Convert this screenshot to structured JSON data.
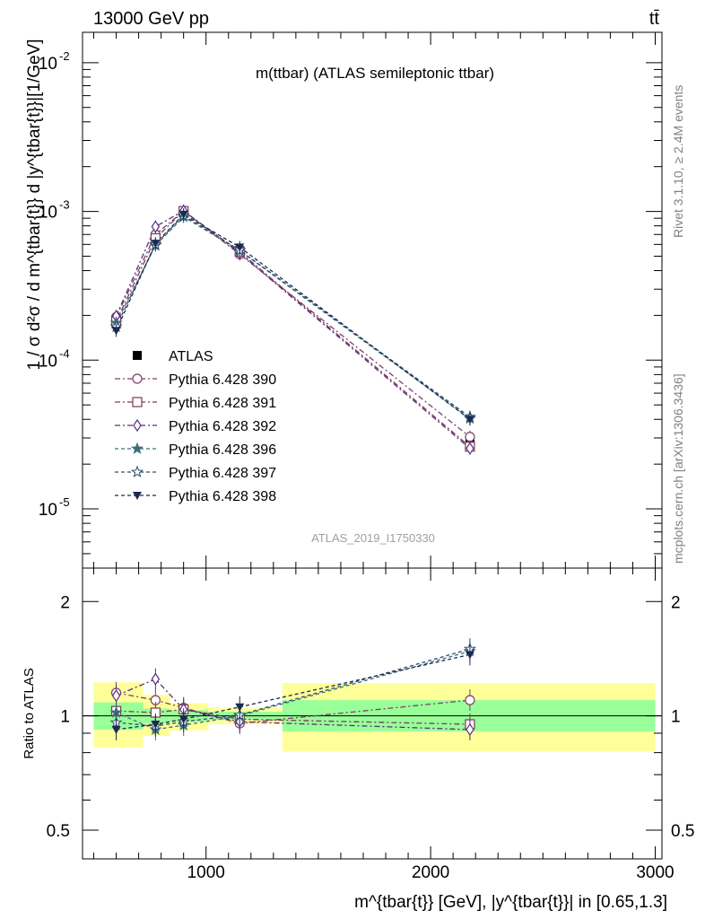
{
  "header": {
    "left": "13000 GeV pp",
    "right": "tt̄"
  },
  "side_labels": {
    "rivet": "Rivet 3.1.10, ≥ 2.4M events",
    "mcplots": "mcplots.cern.ch [arXiv:1306.3436]"
  },
  "chart_data": [
    {
      "type": "line",
      "title": "m(ttbar) (ATLAS semileptonic ttbar)",
      "analysis_label": "ATLAS_2019_I1750330",
      "ylabel": "1 / σ d²σ / d m^{tbar{t}} d |y^{tbar{t}}|[1/GeV]",
      "yscale": "log",
      "ylim": [
        4e-06,
        0.016
      ],
      "xlim": [
        450,
        3030
      ],
      "x_ticks": [
        1000,
        2000,
        3000
      ],
      "y_ticks": [
        "10^-5",
        "10^-4",
        "10^-3",
        "10^-2"
      ],
      "legend_placement": "left-middle",
      "x": [
        600,
        775,
        900,
        1150,
        2175
      ],
      "series": [
        {
          "name": "ATLAS",
          "marker": "filled-square",
          "color": "#000000",
          "values": [
            0.000175,
            0.00064,
            0.000975,
            0.000545,
            2.75e-05
          ]
        },
        {
          "name": "Pythia 6.428 390",
          "marker": "open-circle",
          "color": "#7a3f6c",
          "dash": "6,3,2,3",
          "values": [
            0.000195,
            0.0007,
            0.001005,
            0.000515,
            3.05e-05
          ]
        },
        {
          "name": "Pythia 6.428 391",
          "marker": "open-square",
          "color": "#7a3a56",
          "dash": "6,3,2,3",
          "values": [
            0.000182,
            0.00066,
            0.001005,
            0.000535,
            2.62e-05
          ]
        },
        {
          "name": "Pythia 6.428 392",
          "marker": "open-diamond",
          "color": "#5a2d82",
          "dash": "6,3,2,3",
          "values": [
            0.000198,
            0.00079,
            0.00101,
            0.000525,
            2.55e-05
          ]
        },
        {
          "name": "Pythia 6.428 396",
          "marker": "filled-star",
          "color": "#3d6f7a",
          "dash": "4,3",
          "values": [
            0.000178,
            0.00059,
            0.00092,
            0.000545,
            4.05e-05
          ]
        },
        {
          "name": "Pythia 6.428 397",
          "marker": "open-star",
          "color": "#2b4f6e",
          "dash": "4,3",
          "values": [
            0.000168,
            0.0006,
            0.00094,
            0.000548,
            4.15e-05
          ]
        },
        {
          "name": "Pythia 6.428 398",
          "marker": "filled-triangle-down",
          "color": "#1b2a52",
          "dash": "4,3",
          "values": [
            0.000158,
            0.00061,
            0.000955,
            0.000575,
            4e-05
          ]
        }
      ]
    },
    {
      "type": "line",
      "ylabel": "Ratio to ATLAS",
      "xlabel": "m^{tbar{t}} [GeV], |y^{tbar{t}}| in [0.65,1.3]",
      "yscale": "log",
      "ylim": [
        0.42,
        2.45
      ],
      "xlim": [
        450,
        3030
      ],
      "y_ticks": [
        "0.5",
        "1",
        "2"
      ],
      "x": [
        600,
        775,
        900,
        1150,
        2175
      ],
      "uncertainty_bands": [
        {
          "x_range": [
            500,
            720
          ],
          "yellow": [
            0.825,
            1.225
          ],
          "green": [
            0.92,
            1.085
          ]
        },
        {
          "x_range": [
            720,
            840
          ],
          "yellow": [
            0.885,
            1.135
          ],
          "green": [
            0.955,
            1.045
          ]
        },
        {
          "x_range": [
            840,
            1010
          ],
          "yellow": [
            0.915,
            1.08
          ],
          "green": [
            0.965,
            1.035
          ]
        },
        {
          "x_range": [
            1010,
            1340
          ],
          "yellow": [
            0.95,
            1.05
          ],
          "green": [
            0.975,
            1.025
          ]
        },
        {
          "x_range": [
            1340,
            3000
          ],
          "yellow": [
            0.805,
            1.22
          ],
          "green": [
            0.91,
            1.1
          ]
        }
      ],
      "series": [
        {
          "name": "Pythia 6.428 390",
          "values": [
            1.15,
            1.1,
            1.05,
            0.955,
            1.1
          ]
        },
        {
          "name": "Pythia 6.428 391",
          "values": [
            1.03,
            1.02,
            1.04,
            0.98,
            0.95
          ]
        },
        {
          "name": "Pythia 6.428 392",
          "values": [
            1.13,
            1.25,
            1.04,
            0.965,
            0.92
          ]
        },
        {
          "name": "Pythia 6.428 396",
          "values": [
            1.02,
            0.92,
            0.945,
            1.0,
            1.48
          ]
        },
        {
          "name": "Pythia 6.428 397",
          "values": [
            0.96,
            0.94,
            0.965,
            1.005,
            1.5
          ]
        },
        {
          "name": "Pythia 6.428 398",
          "values": [
            0.92,
            0.95,
            0.98,
            1.055,
            1.45
          ]
        }
      ]
    }
  ]
}
